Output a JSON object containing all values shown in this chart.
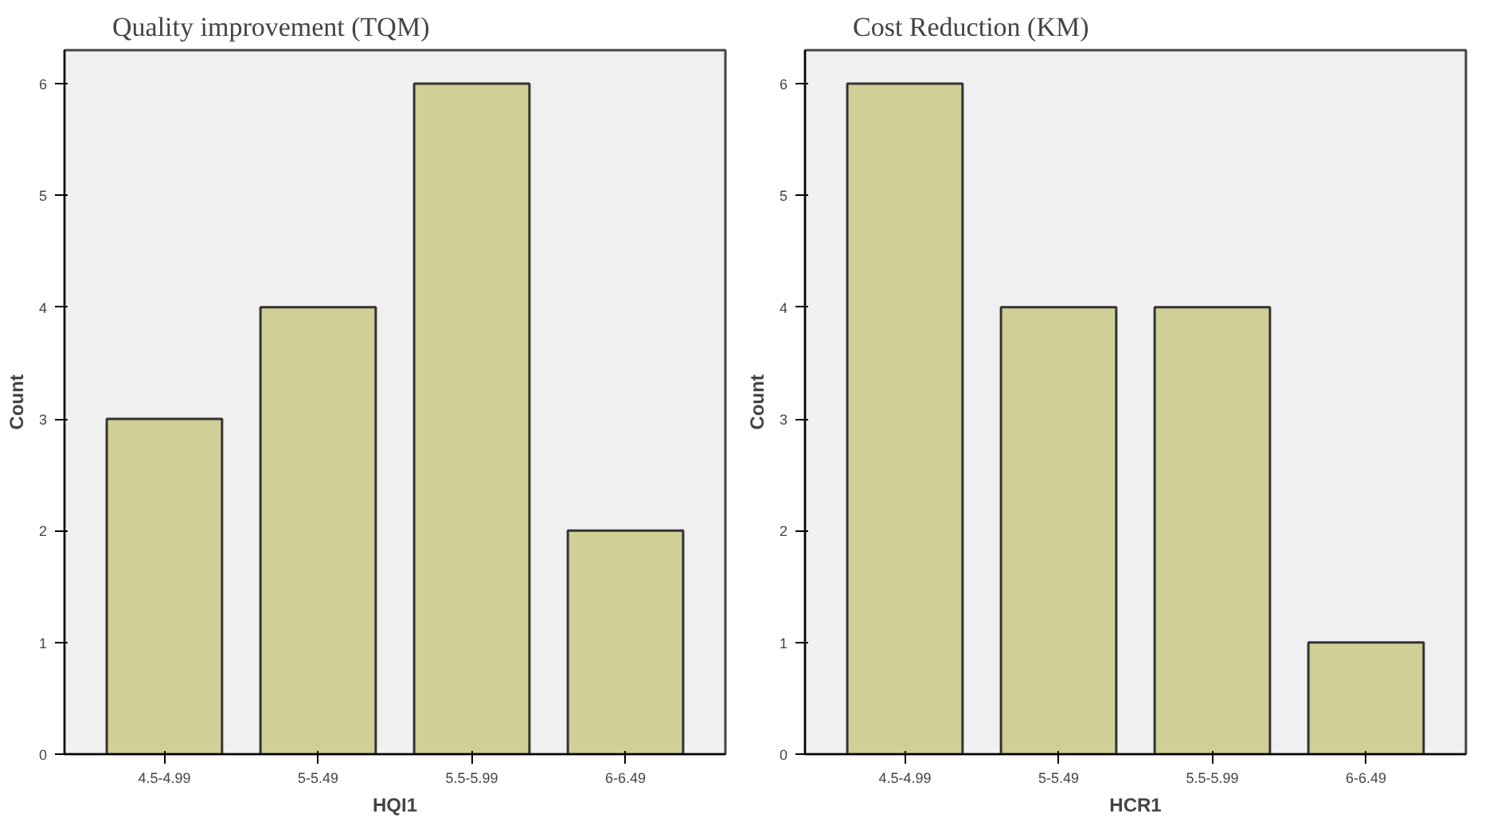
{
  "chart_data": [
    {
      "type": "bar",
      "title": "Quality improvement (TQM)",
      "xlabel": "HQI1",
      "ylabel": "Count",
      "categories": [
        "4.5-4.99",
        "5-5.49",
        "5.5-5.99",
        "6-6.49"
      ],
      "values": [
        3,
        4,
        6,
        2
      ],
      "color": "#d0cf96",
      "ylim": [
        0,
        6.3
      ],
      "yticks": [
        0,
        1,
        2,
        3,
        4,
        5,
        6
      ],
      "grid": false
    },
    {
      "type": "bar",
      "title": "Cost Reduction (KM)",
      "xlabel": "HCR1",
      "ylabel": "Count",
      "categories": [
        "4.5-4.99",
        "5-5.49",
        "5.5-5.99",
        "6-6.49"
      ],
      "values": [
        6,
        4,
        4,
        1
      ],
      "color": "#d0cf96",
      "ylim": [
        0,
        6.3
      ],
      "yticks": [
        0,
        1,
        2,
        3,
        4,
        5,
        6
      ],
      "grid": false
    }
  ]
}
